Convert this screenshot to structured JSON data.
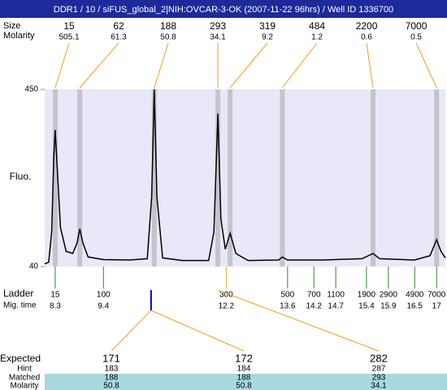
{
  "chart_data": {
    "type": "line",
    "title": "DDR1 / 10 / siFUS_global_2|NIH:OVCAR-3-OK (2007-11-22 96hrs) / Well ID 1336700",
    "size_label": "Size",
    "molarity_label": "Molarity",
    "ylabel": "Fluo.",
    "ladder_label": "Ladder",
    "time_label": "Mig. time",
    "expected_label": "Expected",
    "hint_label": "Hint",
    "matched_label": "Matched",
    "table_molarity_label": "Molarity",
    "xlim": [
      8.06,
      17.2
    ],
    "ylim": [
      40,
      450
    ],
    "yticks": [
      40,
      450
    ],
    "color": "#000000",
    "background": "#e8e8f8",
    "band_color": "#c4c4cc",
    "peaks": {
      "x": [
        8.3,
        8.86,
        10.56,
        12.01,
        12.29,
        13.48,
        15.55,
        17.0
      ],
      "size": [
        15,
        62,
        188,
        293,
        319,
        484,
        2200,
        7000
      ],
      "molarity": [
        505.1,
        61.3,
        50.8,
        34.1,
        9.2,
        1.2,
        0.6,
        0.5
      ]
    },
    "x": [
      8.06,
      8.15,
      8.22,
      8.27,
      8.3,
      8.34,
      8.42,
      8.55,
      8.7,
      8.8,
      8.86,
      8.93,
      9.05,
      9.4,
      10.0,
      10.4,
      10.5,
      10.56,
      10.62,
      10.75,
      11.2,
      11.8,
      11.92,
      12.01,
      12.08,
      12.18,
      12.29,
      12.42,
      12.7,
      13.4,
      13.48,
      13.6,
      14.4,
      15.3,
      15.55,
      15.7,
      16.5,
      16.85,
      17.0,
      17.1,
      17.2
    ],
    "values": [
      46,
      50,
      120,
      300,
      356,
      280,
      130,
      75,
      70,
      95,
      127,
      95,
      62,
      56,
      55,
      58,
      200,
      450,
      200,
      60,
      54,
      54,
      120,
      394,
      150,
      80,
      117,
      70,
      54,
      55,
      62,
      55,
      55,
      58,
      70,
      58,
      55,
      65,
      102,
      75,
      60
    ],
    "ladder": {
      "sizes": [
        15,
        100,
        300,
        500,
        700,
        1100,
        1900,
        2900,
        4900,
        7000
      ],
      "times": [
        8.3,
        9.4,
        12.2,
        13.6,
        14.2,
        14.7,
        15.4,
        15.9,
        16.5,
        17
      ]
    },
    "table": {
      "expected": [
        171,
        172,
        282
      ],
      "expected_colors": [
        "#e02020",
        "#000000",
        "#e02020"
      ],
      "hint": [
        183,
        184,
        287
      ],
      "matched": [
        188,
        188,
        293
      ],
      "molarity": [
        50.8,
        50.8,
        34.1
      ]
    }
  }
}
